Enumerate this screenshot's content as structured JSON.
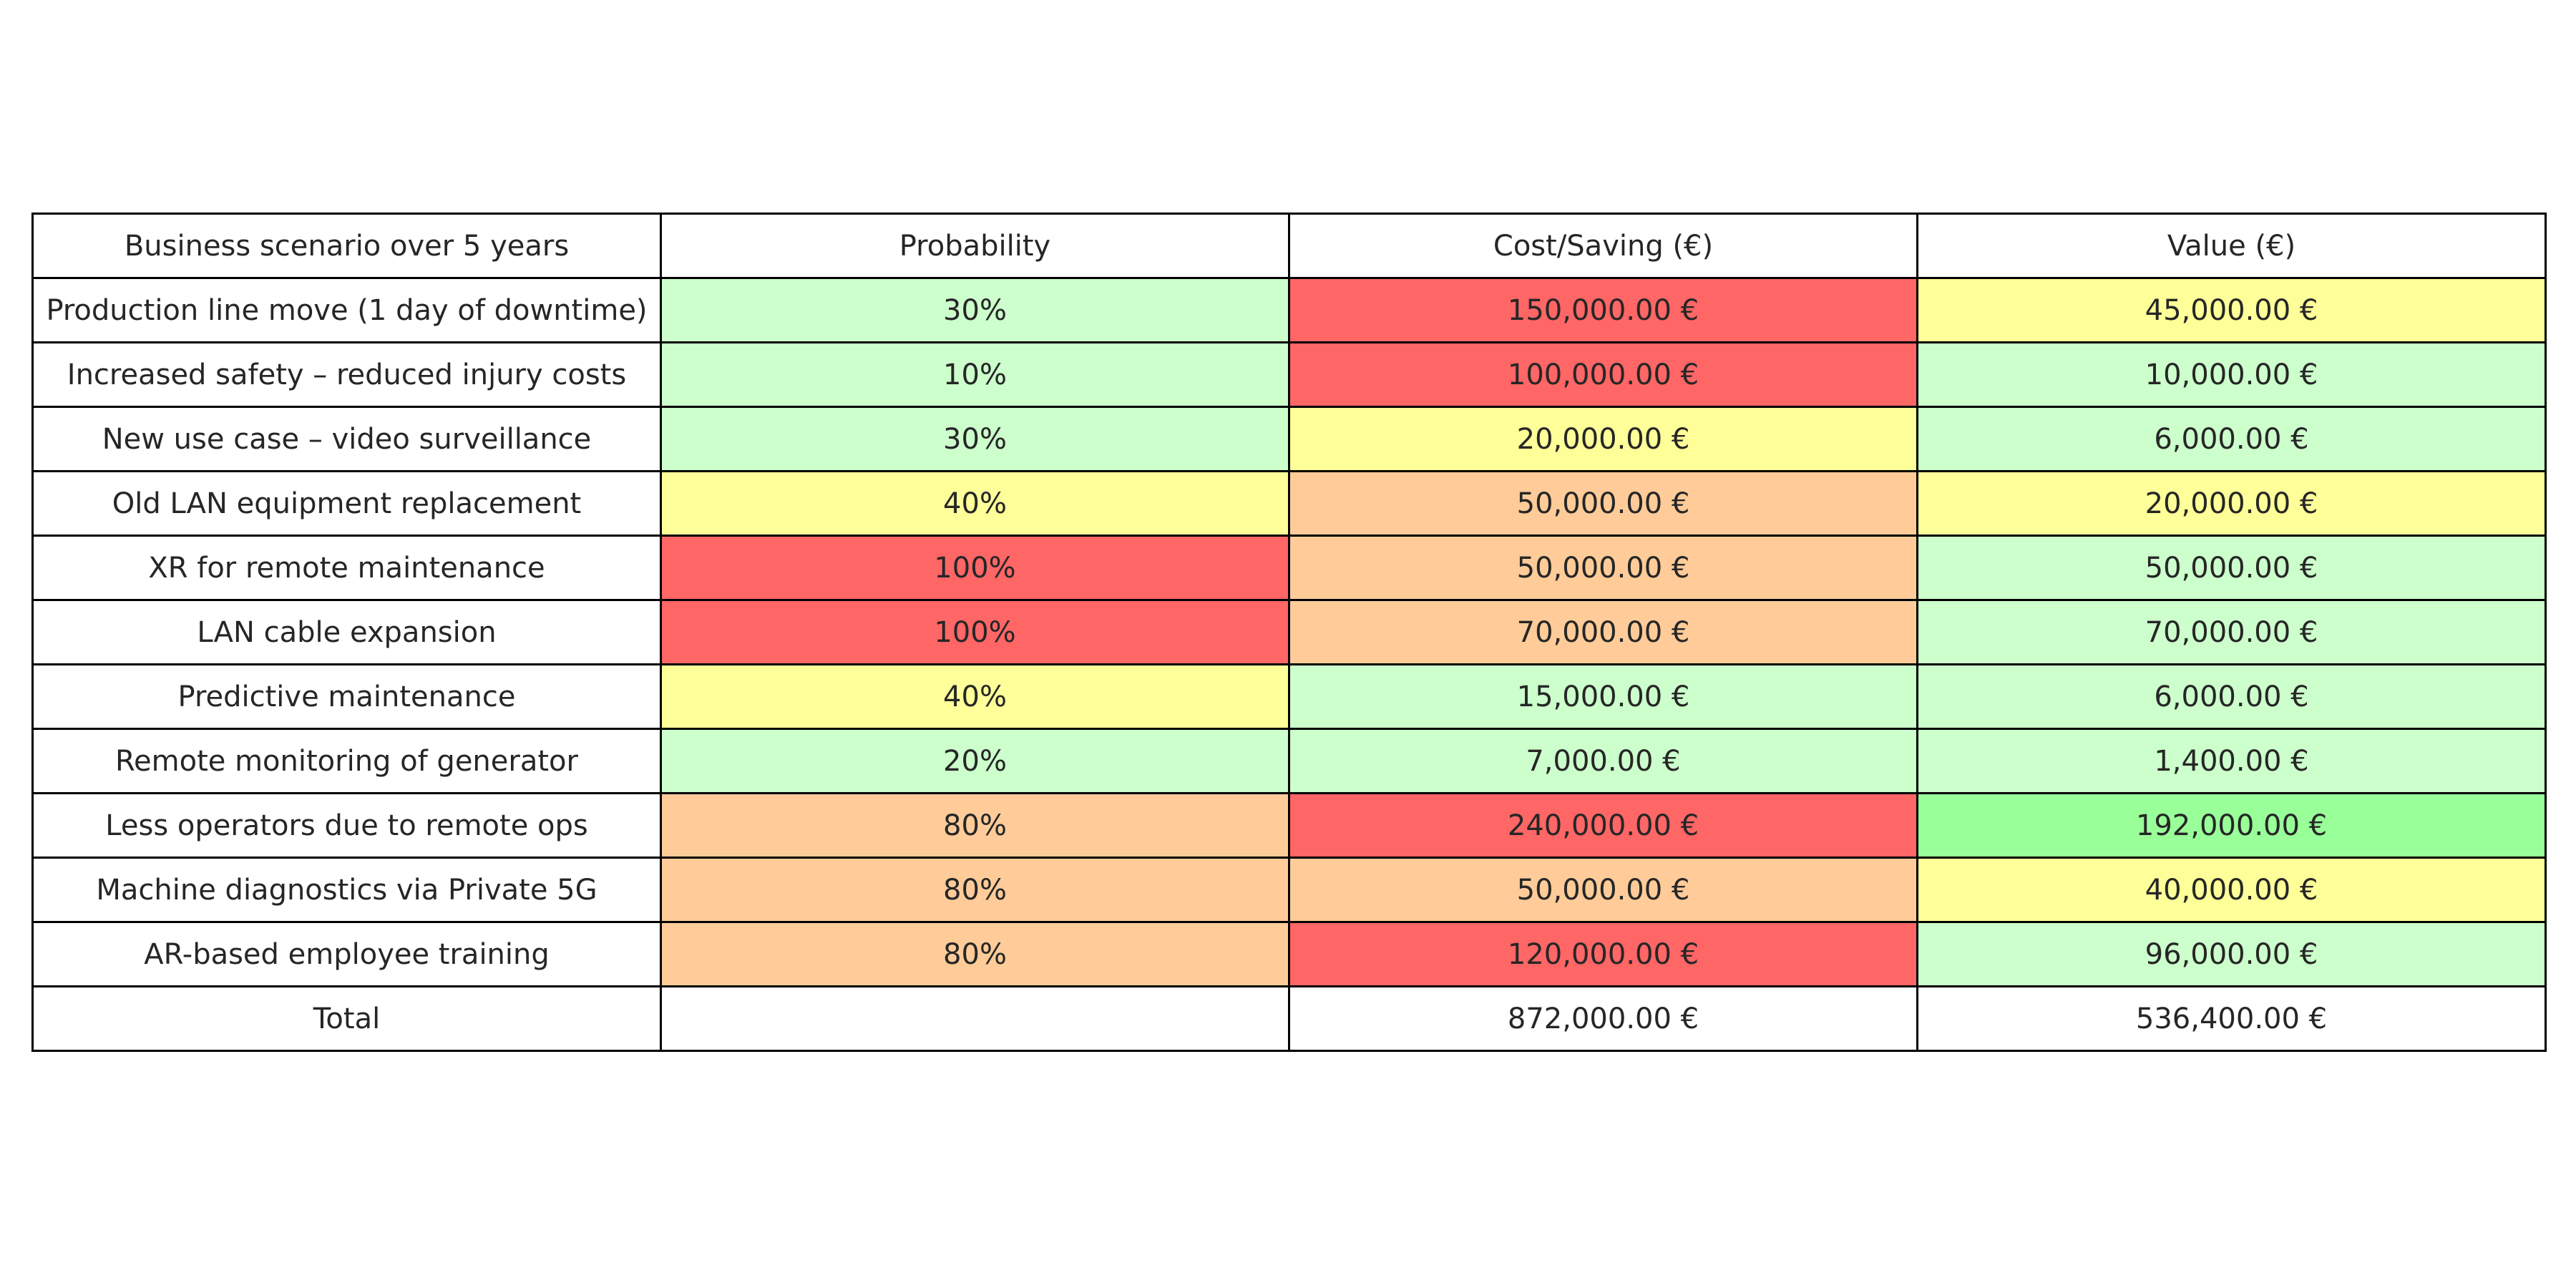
{
  "chart_data": {
    "type": "table",
    "columns": [
      "Business scenario over 5 years",
      "Probability",
      "Cost/Saving (€)",
      "Value (€)"
    ],
    "rows": [
      {
        "scenario": "Production line move (1 day of downtime)",
        "probability": "30%",
        "cost": "150,000.00 €",
        "value": "45,000.00 €",
        "colors": [
          "#ffffff",
          "#ccffcc",
          "#ff6666",
          "#ffff99"
        ]
      },
      {
        "scenario": "Increased safety – reduced injury costs",
        "probability": "10%",
        "cost": "100,000.00 €",
        "value": "10,000.00 €",
        "colors": [
          "#ffffff",
          "#ccffcc",
          "#ff6666",
          "#ccffcc"
        ]
      },
      {
        "scenario": "New use case – video surveillance",
        "probability": "30%",
        "cost": "20,000.00 €",
        "value": "6,000.00 €",
        "colors": [
          "#ffffff",
          "#ccffcc",
          "#ffff99",
          "#ccffcc"
        ]
      },
      {
        "scenario": "Old LAN equipment replacement",
        "probability": "40%",
        "cost": "50,000.00 €",
        "value": "20,000.00 €",
        "colors": [
          "#ffffff",
          "#ffff99",
          "#ffcc99",
          "#ffff99"
        ]
      },
      {
        "scenario": "XR for remote maintenance",
        "probability": "100%",
        "cost": "50,000.00 €",
        "value": "50,000.00 €",
        "colors": [
          "#ffffff",
          "#ff6666",
          "#ffcc99",
          "#ccffcc"
        ]
      },
      {
        "scenario": "LAN cable expansion",
        "probability": "100%",
        "cost": "70,000.00 €",
        "value": "70,000.00 €",
        "colors": [
          "#ffffff",
          "#ff6666",
          "#ffcc99",
          "#ccffcc"
        ]
      },
      {
        "scenario": "Predictive maintenance",
        "probability": "40%",
        "cost": "15,000.00 €",
        "value": "6,000.00 €",
        "colors": [
          "#ffffff",
          "#ffff99",
          "#ccffcc",
          "#ccffcc"
        ]
      },
      {
        "scenario": "Remote monitoring of generator",
        "probability": "20%",
        "cost": "7,000.00 €",
        "value": "1,400.00 €",
        "colors": [
          "#ffffff",
          "#ccffcc",
          "#ccffcc",
          "#ccffcc"
        ]
      },
      {
        "scenario": "Less operators due to remote ops",
        "probability": "80%",
        "cost": "240,000.00 €",
        "value": "192,000.00 €",
        "colors": [
          "#ffffff",
          "#ffcc99",
          "#ff6666",
          "#99ff99"
        ]
      },
      {
        "scenario": "Machine diagnostics via Private 5G",
        "probability": "80%",
        "cost": "50,000.00 €",
        "value": "40,000.00 €",
        "colors": [
          "#ffffff",
          "#ffcc99",
          "#ffcc99",
          "#ffff99"
        ]
      },
      {
        "scenario": "AR-based employee training",
        "probability": "80%",
        "cost": "120,000.00 €",
        "value": "96,000.00 €",
        "colors": [
          "#ffffff",
          "#ffcc99",
          "#ff6666",
          "#ccffcc"
        ]
      }
    ],
    "total": {
      "label": "Total",
      "probability": "",
      "cost": "872,000.00 €",
      "value": "536,400.00 €"
    }
  }
}
